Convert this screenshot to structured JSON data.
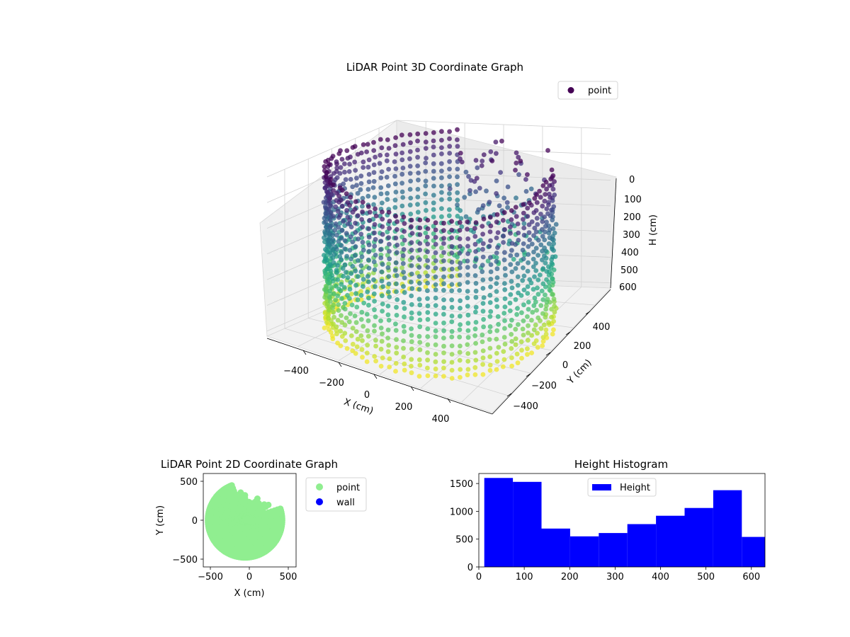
{
  "chart_data": [
    {
      "type": "scatter",
      "projection": "3d",
      "title": "LiDAR Point 3D Coordinate Graph",
      "xlabel": "X (cm)",
      "ylabel": "Y (cm)",
      "zlabel": "H (cm)",
      "x_ticks": [
        "−400",
        "−200",
        "0",
        "200",
        "400"
      ],
      "y_ticks": [
        "−400",
        "−200",
        "0",
        "200",
        "400"
      ],
      "z_ticks": [
        "0",
        "100",
        "200",
        "300",
        "400",
        "500",
        "600"
      ],
      "xlim": [
        -550,
        550
      ],
      "ylim": [
        -550,
        550
      ],
      "zlim": [
        0,
        620
      ],
      "z_inverted": true,
      "colormap": "viridis",
      "grid": true,
      "legend": {
        "position": "top-right",
        "entries": [
          {
            "label": "point",
            "color": "#440154"
          }
        ]
      },
      "series": [
        {
          "name": "point",
          "shape": "ring of wall points, radius ≈ 500 cm, with a gap facing +X/−Y",
          "radius": 500,
          "h_range": [
            0,
            630
          ],
          "gap_angle_deg": [
            20,
            110
          ]
        }
      ]
    },
    {
      "type": "scatter",
      "title": "LiDAR Point 2D Coordinate Graph",
      "xlabel": "X (cm)",
      "ylabel": "Y (cm)",
      "x_ticks": [
        "−500",
        "0",
        "500"
      ],
      "y_ticks": [
        "−500",
        "0",
        "500"
      ],
      "xlim": [
        -600,
        600
      ],
      "ylim": [
        -600,
        600
      ],
      "legend": {
        "position": "outside-right",
        "entries": [
          {
            "label": "point",
            "color": "#90ee90"
          },
          {
            "label": "wall",
            "color": "#0000ff"
          }
        ]
      },
      "series": [
        {
          "name": "point",
          "color": "#90ee90",
          "radius": 500,
          "gap_angle_deg": [
            20,
            110
          ]
        },
        {
          "name": "wall",
          "color": "#0000ff",
          "values": []
        }
      ]
    },
    {
      "type": "bar",
      "subtype": "histogram",
      "title": "Height Histogram",
      "xlabel": "",
      "ylabel": "",
      "x_ticks": [
        "0",
        "100",
        "200",
        "300",
        "400",
        "500",
        "600"
      ],
      "y_ticks": [
        "0",
        "500",
        "1000",
        "1500"
      ],
      "xlim": [
        0,
        630
      ],
      "ylim": [
        0,
        1680
      ],
      "bin_edges": [
        12,
        75,
        138,
        201,
        264,
        327,
        390,
        453,
        516,
        579,
        642
      ],
      "values": [
        1600,
        1530,
        690,
        550,
        610,
        770,
        920,
        1060,
        1380,
        540
      ],
      "color": "#0000ff",
      "legend": {
        "position": "top-center",
        "entries": [
          {
            "label": "Height",
            "color": "#0000ff"
          }
        ]
      }
    }
  ]
}
